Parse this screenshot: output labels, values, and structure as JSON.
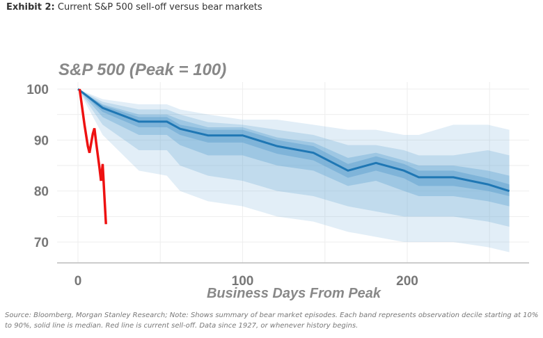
{
  "exhibit": {
    "label": "Exhibit 2:",
    "title": "Current S&P 500 sell-off versus bear markets"
  },
  "source_note": "Source: Bloomberg, Morgan Stanley Research; Note: Shows summary of bear market episodes. Each band represents observation decile starting at 10% to 90%, solid line is median. Red line is current sell-off. Data since 1927, or whenever history begins.",
  "chart_data": {
    "type": "area",
    "title": "S&P 500 (Peak = 100)",
    "xlabel": "Business Days From Peak",
    "ylabel": "",
    "xlim": [
      -12,
      264
    ],
    "ylim": [
      67,
      102
    ],
    "xticks": [
      0,
      100,
      200
    ],
    "yticks": [
      70,
      80,
      90,
      100
    ],
    "grid": true,
    "colors": {
      "median": "#1f77b4",
      "band": "#5fa2d0",
      "current": "#ee1111"
    },
    "x": [
      0,
      15,
      37,
      54,
      62,
      79,
      100,
      121,
      143,
      164,
      181,
      198,
      207,
      228,
      249,
      262
    ],
    "median": [
      100,
      96.3,
      93.6,
      93.6,
      92.2,
      90.9,
      90.9,
      88.8,
      87.5,
      84,
      85.5,
      84,
      82.7,
      82.7,
      81.3,
      80
    ],
    "bands": [
      {
        "name": "10%-90%",
        "low": [
          100,
          91,
          84,
          83,
          80,
          78,
          77,
          75,
          74,
          72,
          71,
          70,
          70,
          70,
          69,
          68
        ],
        "high": [
          100,
          98,
          97,
          97,
          96,
          95,
          94,
          94,
          93,
          92,
          92,
          91,
          91,
          93,
          93,
          92
        ]
      },
      {
        "name": "20%-80%",
        "low": [
          100,
          93,
          88,
          88,
          85,
          83,
          82,
          80,
          79,
          77,
          76,
          75,
          75,
          75,
          74,
          73
        ],
        "high": [
          100,
          97.5,
          96,
          96,
          95,
          93.5,
          93,
          92,
          91,
          89,
          89,
          88,
          87,
          87,
          88,
          87
        ]
      },
      {
        "name": "30%-70%",
        "low": [
          100,
          94.5,
          91,
          91,
          89,
          87,
          87,
          85,
          84,
          81,
          82,
          80,
          79,
          79,
          78,
          77
        ],
        "high": [
          100,
          97,
          95,
          95,
          94,
          92.5,
          92.5,
          90.5,
          89.5,
          86.5,
          87.5,
          86,
          85,
          85,
          84,
          83
        ]
      },
      {
        "name": "40%-60%",
        "low": [
          100,
          95.5,
          92.5,
          92.5,
          91,
          89.5,
          89.5,
          87.3,
          86,
          82.6,
          84,
          82.5,
          81,
          81,
          80,
          79
        ],
        "high": [
          100,
          96.8,
          94.5,
          94.5,
          93,
          92,
          92,
          90,
          88.8,
          85.3,
          86.8,
          85.3,
          84,
          84,
          82.5,
          81.3
        ]
      }
    ],
    "current": {
      "x": [
        1,
        4,
        6,
        7,
        9,
        10,
        11,
        13,
        14,
        15,
        16,
        17
      ],
      "y": [
        100,
        92.9,
        88.8,
        87.5,
        91.2,
        92.3,
        89.6,
        84.7,
        82,
        85.3,
        79.3,
        73.5
      ]
    }
  }
}
